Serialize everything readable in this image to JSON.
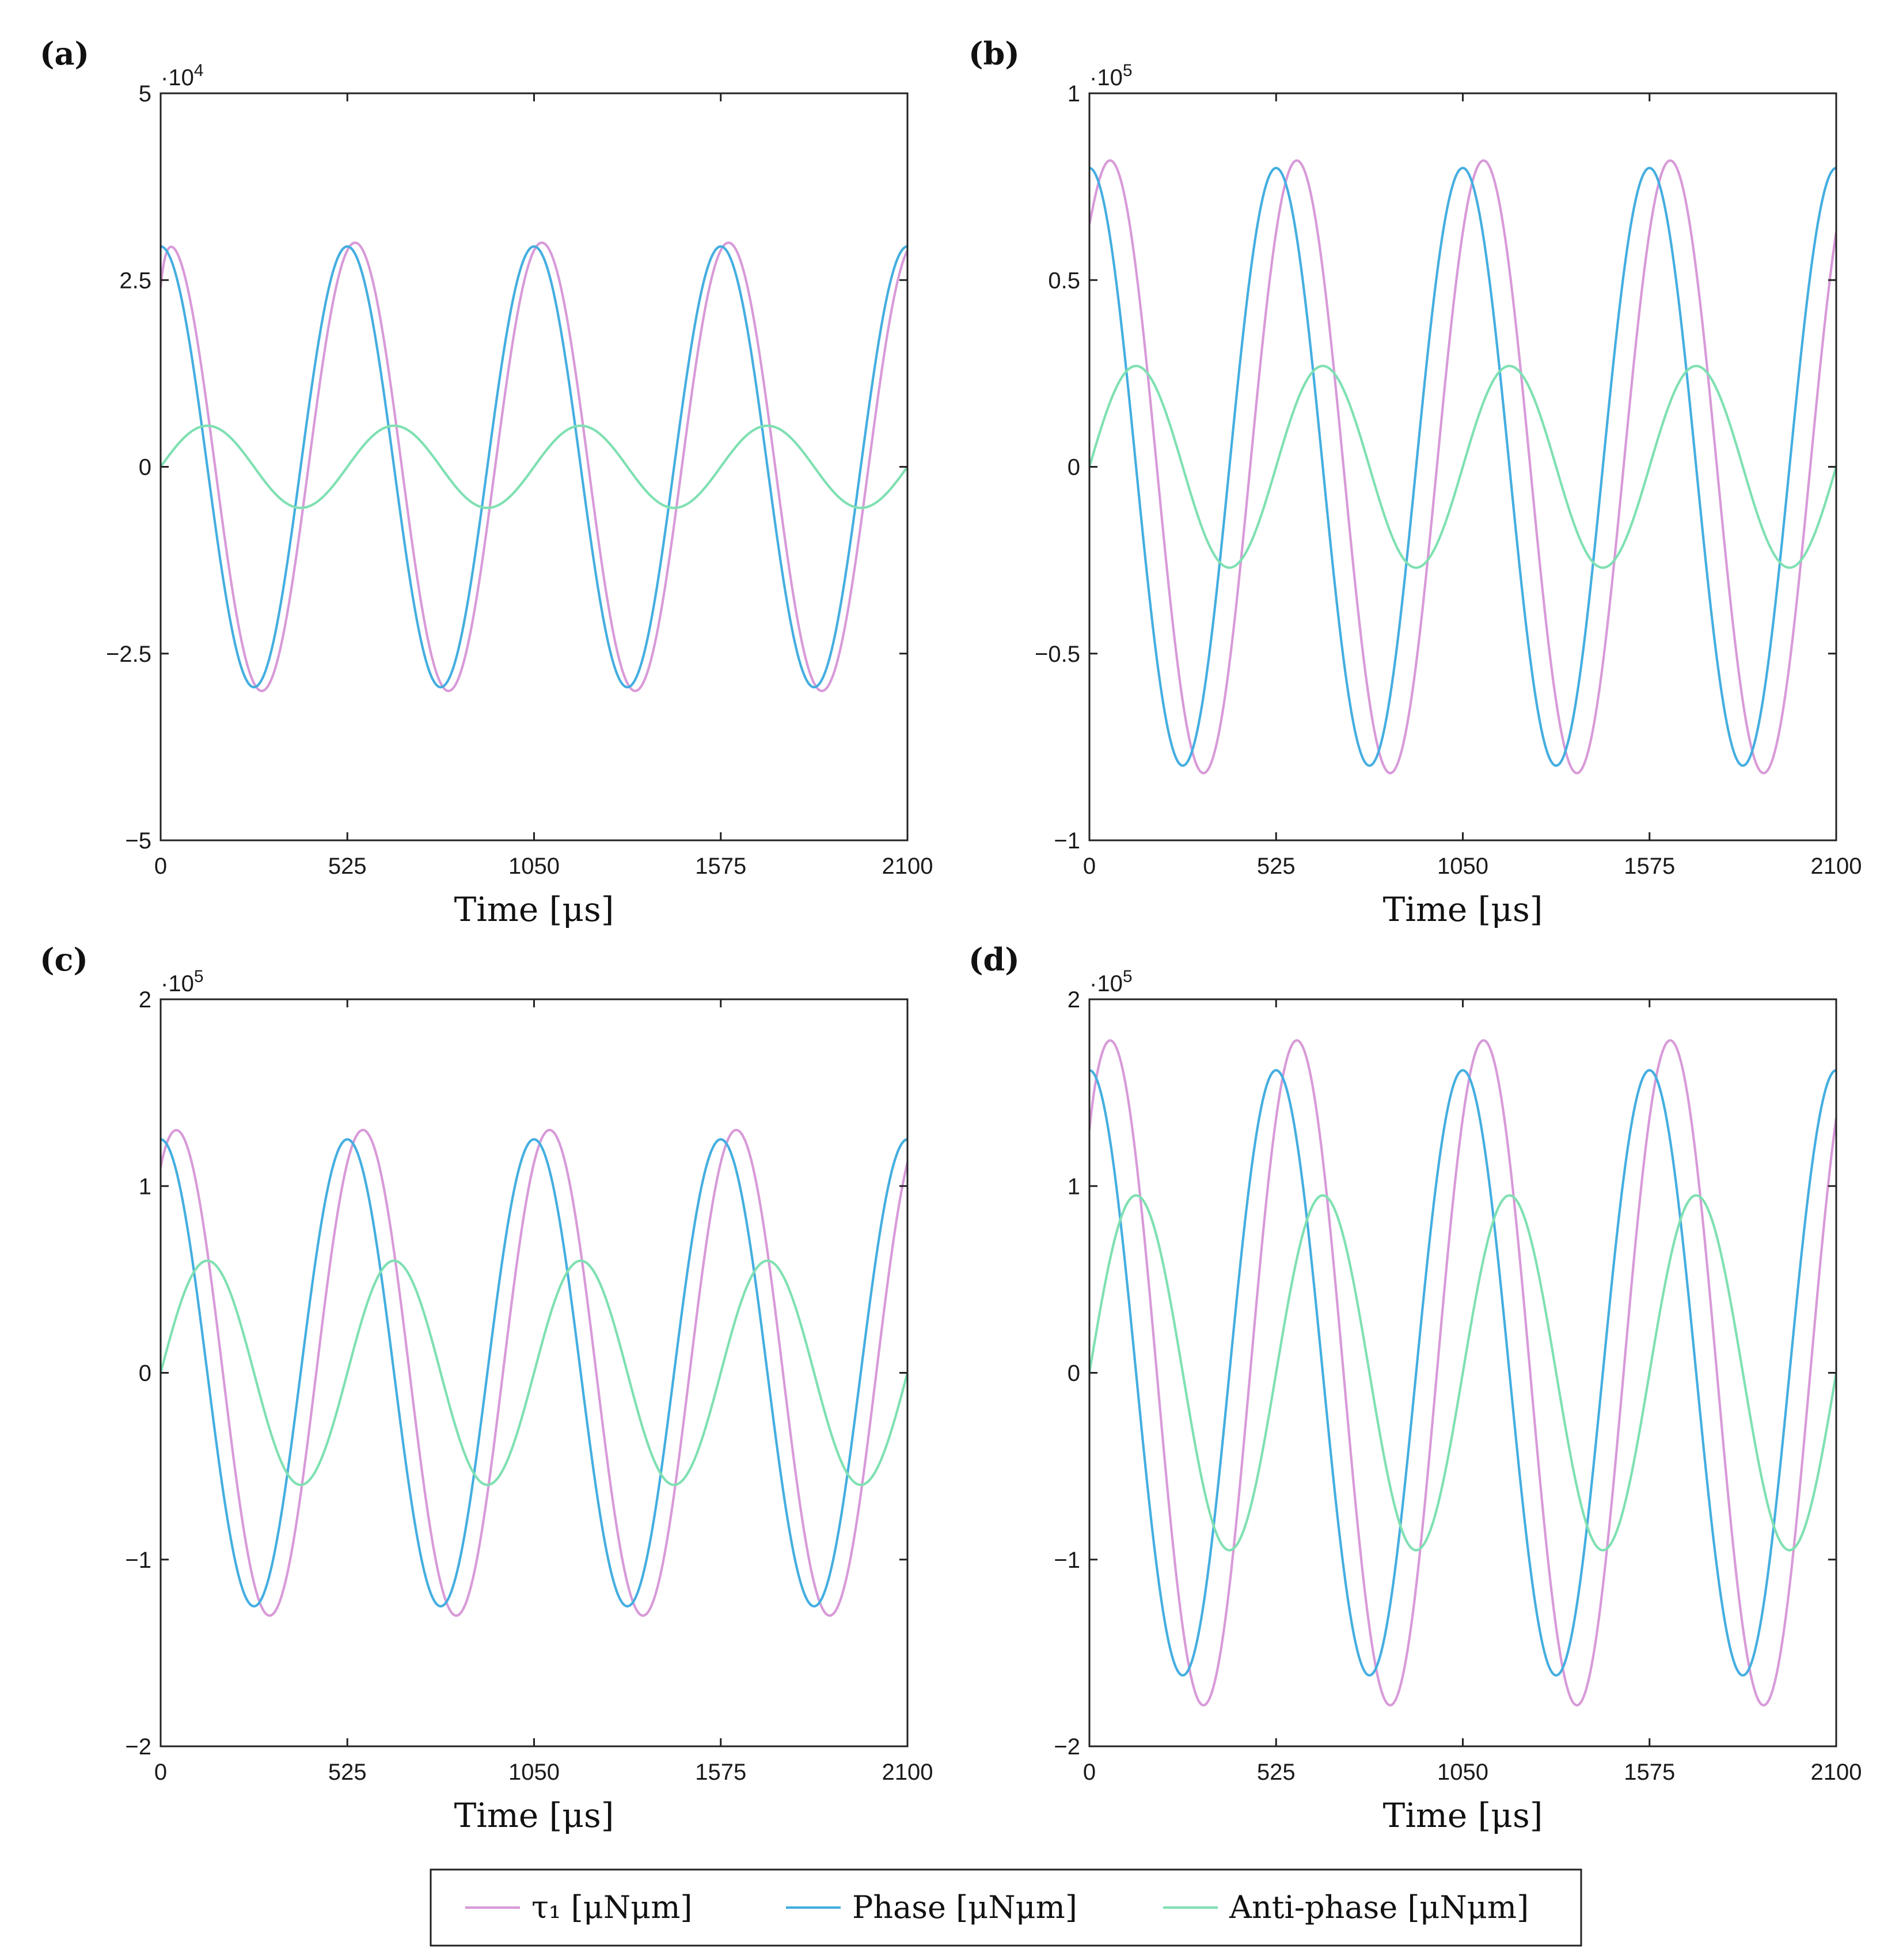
{
  "legend": {
    "entries": [
      {
        "series": "tau1",
        "label": "τ₁ [μNμm]"
      },
      {
        "series": "phase",
        "label": "Phase [μNμm]"
      },
      {
        "series": "antiphase",
        "label": "Anti-phase [μNμm]"
      }
    ]
  },
  "colors": {
    "tau1": "#d89ad8",
    "phase": "#44aee0",
    "antiphase": "#7fe0b2",
    "axes": "#222222"
  },
  "chart_data": [
    {
      "type": "line",
      "panel_label": "(a)",
      "title": "",
      "xlabel": "Time [μs]",
      "ylabel": "",
      "xlim": [
        0,
        2100
      ],
      "ylim": [
        -5,
        5
      ],
      "y_exponent_base": "·10",
      "y_exponent": "4",
      "xticks": [
        0,
        525,
        1050,
        1575,
        2100
      ],
      "xtick_labels": [
        "0",
        "525",
        "1050",
        "1575",
        "2100"
      ],
      "yticks": [
        -5,
        -2.5,
        0,
        2.5,
        5
      ],
      "ytick_labels": [
        "−5",
        "−2.5",
        "0",
        "2.5",
        "5"
      ],
      "period": 525,
      "series": [
        {
          "name": "tau1",
          "amplitude": 3.0,
          "phase_deg": -15,
          "start_value": 2.4,
          "extremes": [
            {
              "x": 540,
              "y": 3.0
            },
            {
              "x": 285,
              "y": -3.0
            }
          ]
        },
        {
          "name": "phase",
          "amplitude": 2.95,
          "phase_deg": 0,
          "extremes": [
            {
              "x": 525,
              "y": 2.95
            },
            {
              "x": 262,
              "y": -2.95
            }
          ]
        },
        {
          "name": "antiphase",
          "amplitude": 0.55,
          "phase_deg": -90,
          "extremes": [
            {
              "x": 131,
              "y": 0.55
            },
            {
              "x": 394,
              "y": -0.55
            }
          ]
        }
      ]
    },
    {
      "type": "line",
      "panel_label": "(b)",
      "title": "",
      "xlabel": "Time [μs]",
      "ylabel": "",
      "xlim": [
        0,
        2100
      ],
      "ylim": [
        -1,
        1
      ],
      "y_exponent_base": "·10",
      "y_exponent": "5",
      "xticks": [
        0,
        525,
        1050,
        1575,
        2100
      ],
      "xtick_labels": [
        "0",
        "525",
        "1050",
        "1575",
        "2100"
      ],
      "yticks": [
        -1,
        -0.5,
        0,
        0.5,
        1
      ],
      "ytick_labels": [
        "−1",
        "−0.5",
        "0",
        "0.5",
        "1"
      ],
      "period": 525,
      "series": [
        {
          "name": "tau1",
          "amplitude": 0.82,
          "phase_deg": -40,
          "start_value": 0.65,
          "extremes": [
            {
              "x": 560,
              "y": 0.83
            },
            {
              "x": 300,
              "y": -0.83
            }
          ]
        },
        {
          "name": "phase",
          "amplitude": 0.8,
          "phase_deg": 0,
          "extremes": [
            {
              "x": 525,
              "y": 0.8
            },
            {
              "x": 262,
              "y": -0.8
            }
          ]
        },
        {
          "name": "antiphase",
          "amplitude": 0.27,
          "phase_deg": -90,
          "extremes": [
            {
              "x": 131,
              "y": 0.27
            },
            {
              "x": 394,
              "y": -0.27
            }
          ]
        }
      ]
    },
    {
      "type": "line",
      "panel_label": "(c)",
      "title": "",
      "xlabel": "Time [μs]",
      "ylabel": "",
      "xlim": [
        0,
        2100
      ],
      "ylim": [
        -2,
        2
      ],
      "y_exponent_base": "·10",
      "y_exponent": "5",
      "xticks": [
        0,
        525,
        1050,
        1575,
        2100
      ],
      "xtick_labels": [
        "0",
        "525",
        "1050",
        "1575",
        "2100"
      ],
      "yticks": [
        -2,
        -1,
        0,
        1,
        2
      ],
      "ytick_labels": [
        "−2",
        "−1",
        "0",
        "1",
        "2"
      ],
      "period": 525,
      "series": [
        {
          "name": "tau1",
          "amplitude": 1.3,
          "phase_deg": -30,
          "start_value": 1.1,
          "extremes": [
            {
              "x": 560,
              "y": 1.3
            },
            {
              "x": 300,
              "y": -1.35
            }
          ]
        },
        {
          "name": "phase",
          "amplitude": 1.25,
          "phase_deg": 0,
          "extremes": [
            {
              "x": 525,
              "y": 1.25
            },
            {
              "x": 262,
              "y": -1.25
            }
          ]
        },
        {
          "name": "antiphase",
          "amplitude": 0.6,
          "phase_deg": -90,
          "extremes": [
            {
              "x": 131,
              "y": 0.6
            },
            {
              "x": 394,
              "y": -0.6
            }
          ]
        }
      ]
    },
    {
      "type": "line",
      "panel_label": "(d)",
      "title": "",
      "xlabel": "Time [μs]",
      "ylabel": "",
      "xlim": [
        0,
        2100
      ],
      "ylim": [
        -2,
        2
      ],
      "y_exponent_base": "·10",
      "y_exponent": "5",
      "xticks": [
        0,
        525,
        1050,
        1575,
        2100
      ],
      "xtick_labels": [
        "0",
        "525",
        "1050",
        "1575",
        "2100"
      ],
      "yticks": [
        -2,
        -1,
        0,
        1,
        2
      ],
      "ytick_labels": [
        "−2",
        "−1",
        "0",
        "1",
        "2"
      ],
      "period": 525,
      "series": [
        {
          "name": "tau1",
          "amplitude": 1.78,
          "phase_deg": -40,
          "start_value": 1.3,
          "extremes": [
            {
              "x": 580,
              "y": 1.78
            },
            {
              "x": 320,
              "y": -1.85
            }
          ]
        },
        {
          "name": "phase",
          "amplitude": 1.62,
          "phase_deg": 0,
          "extremes": [
            {
              "x": 525,
              "y": 1.62
            },
            {
              "x": 262,
              "y": -1.62
            }
          ]
        },
        {
          "name": "antiphase",
          "amplitude": 0.95,
          "phase_deg": -90,
          "extremes": [
            {
              "x": 131,
              "y": 0.95
            },
            {
              "x": 394,
              "y": -0.95
            }
          ]
        }
      ]
    }
  ]
}
